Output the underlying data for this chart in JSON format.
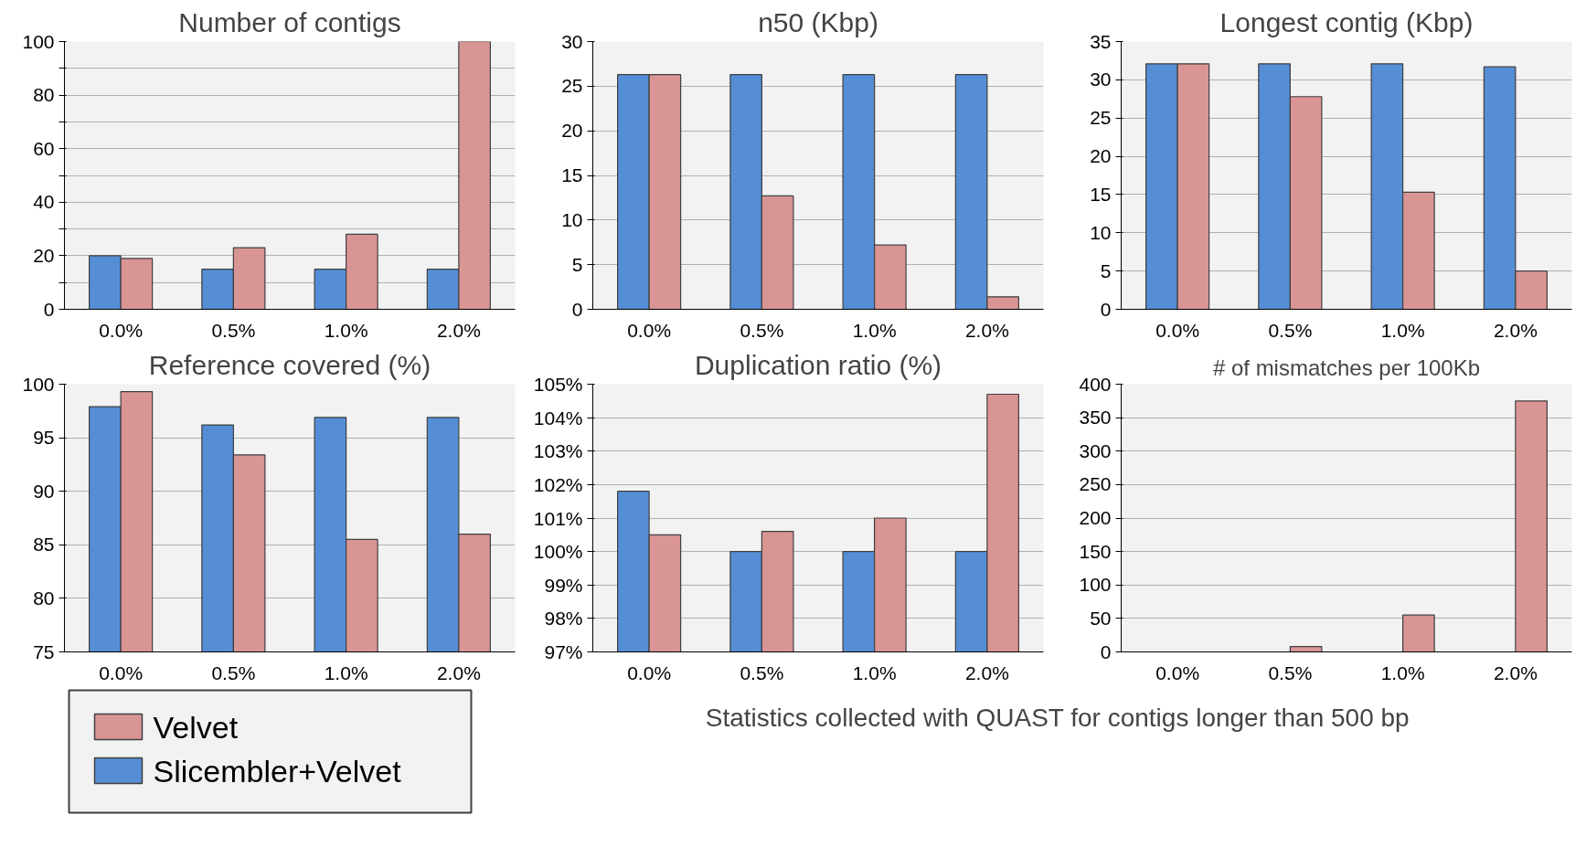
{
  "chart_data": [
    {
      "type": "bar",
      "title": "Number of contigs",
      "categories": [
        "0.0%",
        "0.5%",
        "1.0%",
        "2.0%"
      ],
      "ylim": [
        0,
        100
      ],
      "yticks": [
        0,
        {
          "value": 10,
          "label": null
        },
        20,
        {
          "value": 30,
          "label": null
        },
        40,
        {
          "value": 50,
          "label": null
        },
        60,
        {
          "value": 70,
          "label": null
        },
        80,
        {
          "value": 90,
          "label": null
        },
        100
      ],
      "grid": "y",
      "series": [
        {
          "color": "#558ed5",
          "values": [
            20,
            15,
            15,
            15
          ]
        },
        {
          "color": "#d99594",
          "values": [
            19,
            23,
            28,
            100
          ]
        }
      ]
    },
    {
      "type": "bar",
      "title": "n50 (Kbp)",
      "categories": [
        "0.0%",
        "0.5%",
        "1.0%",
        "2.0%"
      ],
      "ylim": [
        0,
        30
      ],
      "yticks": [
        0,
        5,
        10,
        15,
        20,
        25,
        30
      ],
      "grid": "y",
      "series": [
        {
          "color": "#558ed5",
          "values": [
            26.3,
            26.3,
            26.3,
            26.3
          ]
        },
        {
          "color": "#d99594",
          "values": [
            26.3,
            12.7,
            7.2,
            1.4
          ]
        }
      ]
    },
    {
      "type": "bar",
      "title": "Longest contig (Kbp)",
      "categories": [
        "0.0%",
        "0.5%",
        "1.0%",
        "2.0%"
      ],
      "ylim": [
        0,
        35
      ],
      "yticks": [
        0,
        5,
        10,
        15,
        20,
        25,
        30,
        35
      ],
      "grid": "y",
      "series": [
        {
          "color": "#558ed5",
          "values": [
            32.1,
            32.1,
            32.1,
            31.7
          ]
        },
        {
          "color": "#d99594",
          "values": [
            32.1,
            27.8,
            15.3,
            5.0
          ]
        }
      ]
    },
    {
      "type": "bar",
      "title": "Reference covered (%)",
      "categories": [
        "0.0%",
        "0.5%",
        "1.0%",
        "2.0%"
      ],
      "ylim": [
        75,
        100
      ],
      "yticks": [
        75,
        80,
        85,
        90,
        95,
        100
      ],
      "grid": "y",
      "legend": "bottom left",
      "series": [
        {
          "name": "Slicembler+Velvet",
          "color": "#558ed5",
          "values": [
            97.9,
            96.2,
            96.9,
            96.9
          ]
        },
        {
          "name": "Velvet",
          "color": "#d99594",
          "values": [
            99.3,
            93.4,
            85.5,
            86.0
          ]
        }
      ]
    },
    {
      "type": "bar",
      "title": "Duplication ratio (%)",
      "categories": [
        "0.0%",
        "0.5%",
        "1.0%",
        "2.0%"
      ],
      "ylim": [
        97,
        105
      ],
      "yticks": [
        {
          "value": 97,
          "label": "97%"
        },
        {
          "value": 98,
          "label": "98%"
        },
        {
          "value": 99,
          "label": "99%"
        },
        {
          "value": 100,
          "label": "100%"
        },
        {
          "value": 101,
          "label": "101%"
        },
        {
          "value": 102,
          "label": "102%"
        },
        {
          "value": 103,
          "label": "103%"
        },
        {
          "value": 104,
          "label": "104%"
        },
        {
          "value": 105,
          "label": "105%"
        }
      ],
      "grid": "y",
      "series": [
        {
          "color": "#558ed5",
          "values": [
            101.8,
            100,
            100,
            100
          ]
        },
        {
          "color": "#d99594",
          "values": [
            100.5,
            100.6,
            101.0,
            104.7
          ]
        }
      ]
    },
    {
      "type": "bar",
      "title": "# of mismatches per 100Kb",
      "categories": [
        "0.0%",
        "0.5%",
        "1.0%",
        "2.0%"
      ],
      "ylim": [
        0,
        400
      ],
      "yticks": [
        0,
        50,
        100,
        150,
        200,
        250,
        300,
        350,
        400
      ],
      "grid": "y",
      "annotations": [
        "Statistics collected with QUAST for contigs longer than 500 bp"
      ],
      "series": [
        {
          "color": "#558ed5",
          "values": [
            0,
            0,
            0,
            0
          ]
        },
        {
          "color": "#d99594",
          "values": [
            0,
            8,
            55,
            375
          ]
        }
      ]
    }
  ]
}
